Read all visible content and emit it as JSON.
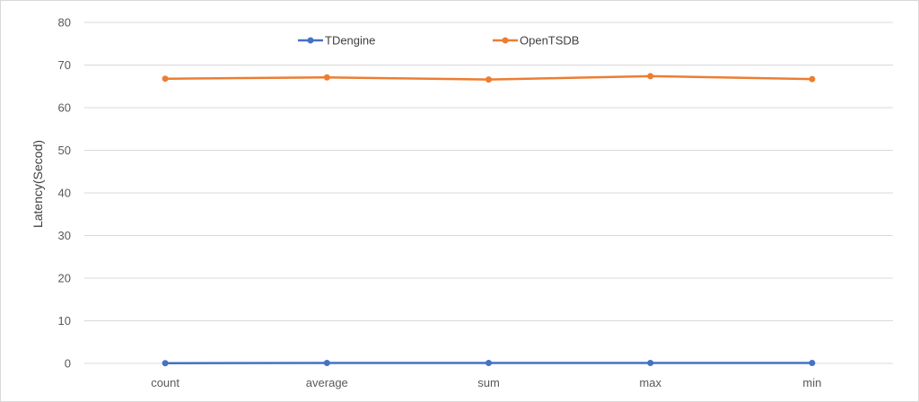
{
  "chart_data": {
    "type": "line",
    "title": "",
    "xlabel": "",
    "ylabel": "Latency(Secod)",
    "categories": [
      "count",
      "average",
      "sum",
      "max",
      "min"
    ],
    "ylim": [
      0,
      80
    ],
    "yticks": [
      0,
      10,
      20,
      30,
      40,
      50,
      60,
      70,
      80
    ],
    "grid": true,
    "legend_position": "top",
    "series": [
      {
        "name": "TDengine",
        "color": "#4472C4",
        "values": [
          0.05,
          0.1,
          0.1,
          0.1,
          0.1
        ]
      },
      {
        "name": "OpenTSDB",
        "color": "#ED7D31",
        "values": [
          66.8,
          67.1,
          66.6,
          67.4,
          66.7
        ]
      }
    ]
  }
}
